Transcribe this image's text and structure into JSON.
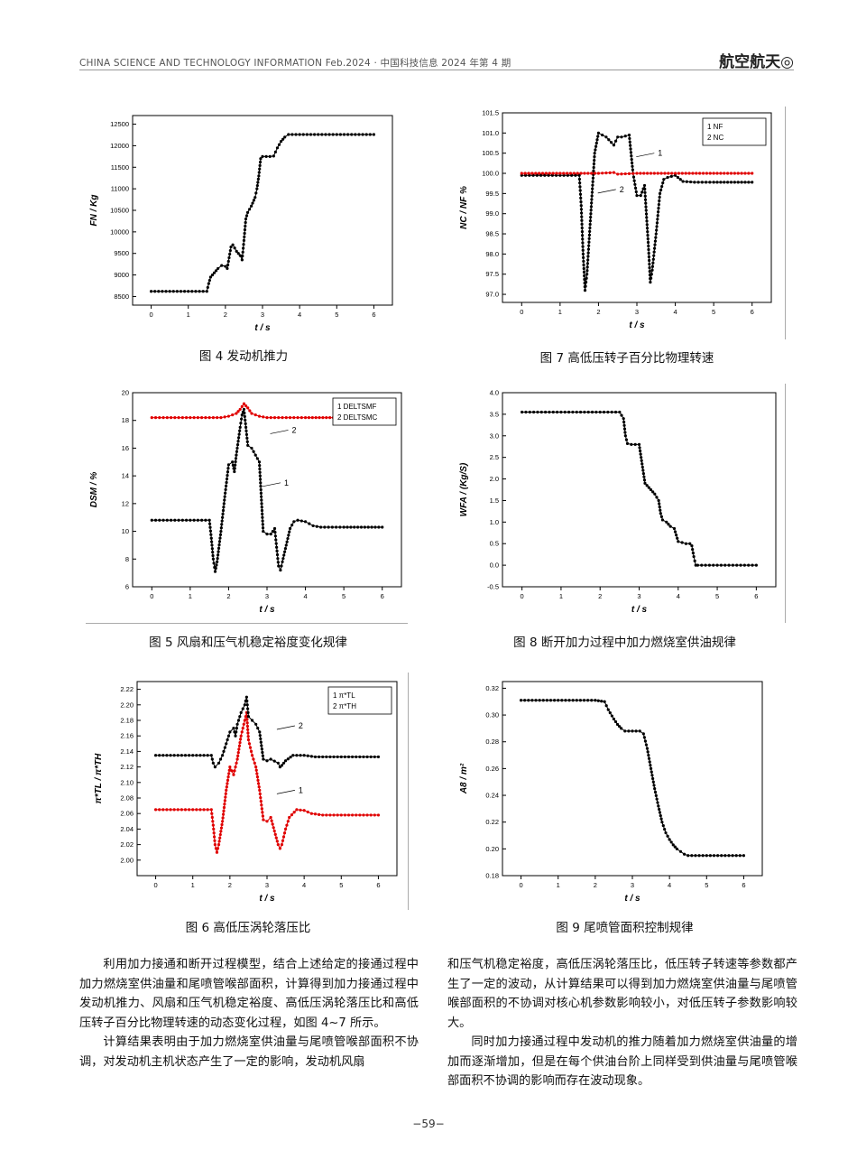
{
  "header": {
    "left": "CHINA SCIENCE AND TECHNOLOGY INFORMATION    Feb.2024 · 中国科技信息 2024 年第 4 期",
    "right": "航空航天◎"
  },
  "figures": [
    {
      "caption": "图 4   发动机推力"
    },
    {
      "caption": "图 5   风扇和压气机稳定裕度变化规律"
    },
    {
      "caption": "图 6   高低压涡轮落压比"
    },
    {
      "caption": "图 7   高低压转子百分比物理转速"
    },
    {
      "caption": "图 8   断开加力过程中加力燃烧室供油规律"
    },
    {
      "caption": "图 9   尾喷管面积控制规律"
    }
  ],
  "body": {
    "left_p1": "利用加力接通和断开过程模型，结合上述给定的接通过程中加力燃烧室供油量和尾喷管喉部面积，计算得到加力接通过程中发动机推力、风扇和压气机稳定裕度、高低压涡轮落压比和高低压转子百分比物理转速的动态变化过程，如图 4~7 所示。",
    "left_p2": "计算结果表明由于加力燃烧室供油量与尾喷管喉部面积不协调，对发动机主机状态产生了一定的影响，发动机风扇",
    "right_p1": "和压气机稳定裕度，高低压涡轮落压比，低压转子转速等参数都产生了一定的波动，从计算结果可以得到加力燃烧室供油量与尾喷管喉部面积的不协调对核心机参数影响较小，对低压转子参数影响较大。",
    "right_p2": "同时加力接通过程中发动机的推力随着加力燃烧室供油量的增加而逐渐增加，但是在每个供油台阶上同样受到供油量与尾喷管喉部面积不协调的影响而存在波动现象。"
  },
  "page_number": "−59−",
  "chart_data": [
    {
      "id": "fig4",
      "type": "scatter",
      "xlabel": "t / s",
      "ylabel": "FN / Kg",
      "xlim": [
        -0.5,
        6.5
      ],
      "ylim": [
        8300,
        12700
      ],
      "xticks": [
        0,
        1,
        2,
        3,
        4,
        5,
        6
      ],
      "yticks": [
        8500,
        9000,
        9500,
        10000,
        10500,
        11000,
        11500,
        12000,
        12500
      ],
      "series": [
        {
          "color": "#000000",
          "x": [
            0,
            0.5,
            1,
            1.5,
            1.55,
            1.6,
            1.7,
            1.8,
            1.9,
            2.0,
            2.05,
            2.1,
            2.15,
            2.2,
            2.3,
            2.4,
            2.45,
            2.5,
            2.55,
            2.6,
            2.7,
            2.8,
            2.85,
            2.9,
            2.95,
            3.0,
            3.2,
            3.3,
            3.4,
            3.5,
            3.6,
            3.7,
            4,
            5,
            6
          ],
          "y": [
            8620,
            8620,
            8620,
            8620,
            8800,
            8950,
            9050,
            9150,
            9220,
            9200,
            9150,
            9400,
            9650,
            9700,
            9550,
            9450,
            9350,
            9800,
            10300,
            10450,
            10600,
            10800,
            11000,
            11300,
            11700,
            11750,
            11750,
            11760,
            11950,
            12100,
            12200,
            12260,
            12260,
            12260,
            12260
          ]
        }
      ]
    },
    {
      "id": "fig5",
      "type": "scatter",
      "xlabel": "t / s",
      "ylabel": "DSM / %",
      "xlim": [
        -0.5,
        6.5
      ],
      "ylim": [
        6,
        20
      ],
      "xticks": [
        0,
        1,
        2,
        3,
        4,
        5,
        6
      ],
      "yticks": [
        6,
        8,
        10,
        12,
        14,
        16,
        18,
        20
      ],
      "legend": [
        "1 DELTSMF",
        "2 DELTSMC"
      ],
      "annotations": [
        {
          "text": "1",
          "x": 3.4,
          "y": 13.5
        },
        {
          "text": "2",
          "x": 3.6,
          "y": 17.3
        }
      ],
      "series": [
        {
          "name": "1 DELTSMF",
          "color": "#000000",
          "x": [
            0,
            0.5,
            1,
            1.5,
            1.55,
            1.6,
            1.65,
            1.7,
            1.8,
            1.9,
            2.0,
            2.1,
            2.15,
            2.2,
            2.3,
            2.35,
            2.4,
            2.5,
            2.6,
            2.7,
            2.8,
            2.85,
            2.9,
            3.0,
            3.1,
            3.2,
            3.3,
            3.35,
            3.4,
            3.5,
            3.6,
            3.7,
            3.8,
            4.0,
            4.2,
            4.4,
            5,
            6
          ],
          "y": [
            10.8,
            10.8,
            10.8,
            10.8,
            9.5,
            8.0,
            7.1,
            7.8,
            10.0,
            12.5,
            14.8,
            15.0,
            14.3,
            15.5,
            17.5,
            18.4,
            18.8,
            16.2,
            16.0,
            15.5,
            15.0,
            12.5,
            10.0,
            9.8,
            9.8,
            10.2,
            7.5,
            7.2,
            7.8,
            9.0,
            10.2,
            10.7,
            10.8,
            10.7,
            10.4,
            10.3,
            10.3,
            10.3
          ]
        },
        {
          "name": "2 DELTSMC",
          "color": "#e00000",
          "x": [
            0,
            0.5,
            1,
            1.5,
            1.8,
            2.0,
            2.2,
            2.3,
            2.4,
            2.5,
            2.6,
            2.8,
            3.0,
            3.4,
            4,
            5,
            6
          ],
          "y": [
            18.2,
            18.2,
            18.2,
            18.2,
            18.2,
            18.3,
            18.5,
            18.8,
            19.2,
            18.9,
            18.5,
            18.3,
            18.2,
            18.2,
            18.2,
            18.2,
            18.2
          ]
        }
      ]
    },
    {
      "id": "fig6",
      "type": "scatter",
      "xlabel": "t / s",
      "ylabel": "π*TL / π*TH",
      "xlim": [
        -0.5,
        6.5
      ],
      "ylim": [
        1.98,
        2.23
      ],
      "xticks": [
        0,
        1,
        2,
        3,
        4,
        5,
        6
      ],
      "yticks": [
        2.0,
        2.02,
        2.04,
        2.06,
        2.08,
        2.1,
        2.12,
        2.14,
        2.16,
        2.18,
        2.2,
        2.22
      ],
      "legend": [
        "1 π*TL",
        "2 π*TH"
      ],
      "annotations": [
        {
          "text": "2",
          "x": 3.8,
          "y": 2.173
        },
        {
          "text": "1",
          "x": 3.8,
          "y": 2.09
        }
      ],
      "series": [
        {
          "name": "1 π*TL",
          "color": "#e00000",
          "x": [
            0,
            0.5,
            1,
            1.5,
            1.55,
            1.6,
            1.65,
            1.7,
            1.8,
            1.9,
            2.0,
            2.1,
            2.15,
            2.2,
            2.3,
            2.4,
            2.45,
            2.5,
            2.6,
            2.7,
            2.8,
            2.9,
            3.0,
            3.1,
            3.3,
            3.35,
            3.4,
            3.5,
            3.6,
            3.8,
            4.0,
            4.2,
            4.5,
            5,
            6
          ],
          "y": [
            2.065,
            2.065,
            2.065,
            2.065,
            2.045,
            2.02,
            2.01,
            2.02,
            2.05,
            2.09,
            2.12,
            2.11,
            2.12,
            2.13,
            2.16,
            2.18,
            2.19,
            2.155,
            2.135,
            2.12,
            2.09,
            2.052,
            2.05,
            2.055,
            2.02,
            2.015,
            2.02,
            2.04,
            2.055,
            2.065,
            2.064,
            2.06,
            2.058,
            2.058,
            2.058
          ]
        },
        {
          "name": "2 π*TH",
          "color": "#000000",
          "x": [
            0,
            0.5,
            1,
            1.5,
            1.55,
            1.6,
            1.7,
            1.8,
            1.9,
            2.0,
            2.1,
            2.15,
            2.2,
            2.3,
            2.4,
            2.45,
            2.5,
            2.6,
            2.7,
            2.8,
            2.9,
            3.0,
            3.1,
            3.3,
            3.35,
            3.4,
            3.5,
            3.7,
            4.0,
            4.3,
            5,
            6
          ],
          "y": [
            2.135,
            2.135,
            2.135,
            2.135,
            2.125,
            2.12,
            2.125,
            2.135,
            2.15,
            2.165,
            2.17,
            2.16,
            2.175,
            2.19,
            2.2,
            2.21,
            2.185,
            2.18,
            2.175,
            2.165,
            2.13,
            2.128,
            2.13,
            2.125,
            2.12,
            2.122,
            2.128,
            2.135,
            2.135,
            2.133,
            2.133,
            2.133
          ]
        }
      ]
    },
    {
      "id": "fig7",
      "type": "scatter",
      "xlabel": "t / s",
      "ylabel": "NC / NF %",
      "xlim": [
        -0.5,
        6.5
      ],
      "ylim": [
        96.8,
        101.5
      ],
      "xticks": [
        0,
        1,
        2,
        3,
        4,
        5,
        6
      ],
      "yticks": [
        97.0,
        97.5,
        98.0,
        98.5,
        99.0,
        99.5,
        100.0,
        100.5,
        101.0,
        101.5
      ],
      "legend": [
        "1 NF",
        "2 NC"
      ],
      "annotations": [
        {
          "text": "1",
          "x": 3.5,
          "y": 100.5
        },
        {
          "text": "2",
          "x": 2.5,
          "y": 99.6
        }
      ],
      "series": [
        {
          "name": "1 NF",
          "color": "#000000",
          "x": [
            0,
            0.5,
            1,
            1.5,
            1.55,
            1.6,
            1.65,
            1.7,
            1.8,
            1.9,
            2.0,
            2.2,
            2.4,
            2.5,
            2.6,
            2.8,
            2.9,
            3.0,
            3.1,
            3.2,
            3.3,
            3.35,
            3.4,
            3.5,
            3.6,
            3.7,
            3.8,
            4.0,
            4.2,
            4.5,
            5,
            6
          ],
          "y": [
            99.95,
            99.95,
            99.95,
            99.95,
            99.2,
            98.0,
            97.1,
            97.5,
            99.0,
            100.5,
            101.0,
            100.9,
            100.7,
            100.9,
            100.9,
            100.95,
            100.0,
            99.45,
            99.45,
            99.7,
            98.2,
            97.3,
            97.6,
            98.5,
            99.5,
            99.85,
            99.9,
            99.95,
            99.8,
            99.78,
            99.78,
            99.78
          ]
        },
        {
          "name": "2 NC",
          "color": "#e00000",
          "x": [
            0,
            1,
            2,
            2.4,
            2.5,
            3,
            4,
            5,
            6
          ],
          "y": [
            100.0,
            100.0,
            100.0,
            100.02,
            99.98,
            100.0,
            100.0,
            100.0,
            100.0
          ]
        }
      ]
    },
    {
      "id": "fig8",
      "type": "scatter",
      "xlabel": "t / s",
      "ylabel": "WFA / (Kg/S)",
      "xlim": [
        -0.5,
        6.5
      ],
      "ylim": [
        -0.5,
        4.0
      ],
      "xticks": [
        0,
        1,
        2,
        3,
        4,
        5,
        6
      ],
      "yticks": [
        -0.5,
        0.0,
        0.5,
        1.0,
        1.5,
        2.0,
        2.5,
        3.0,
        3.5,
        4.0
      ],
      "series": [
        {
          "color": "#000000",
          "x": [
            0,
            0.5,
            1,
            1.5,
            2,
            2.5,
            2.6,
            2.65,
            2.7,
            2.8,
            2.9,
            3.0,
            3.05,
            3.1,
            3.15,
            3.2,
            3.3,
            3.4,
            3.5,
            3.55,
            3.6,
            3.7,
            3.8,
            3.9,
            4.0,
            4.2,
            4.3,
            4.35,
            4.4,
            4.45,
            4.5,
            5,
            5.5,
            6
          ],
          "y": [
            3.55,
            3.55,
            3.55,
            3.55,
            3.55,
            3.55,
            3.4,
            3.0,
            2.82,
            2.8,
            2.8,
            2.8,
            2.5,
            2.2,
            1.9,
            1.85,
            1.75,
            1.65,
            1.5,
            1.2,
            1.05,
            1.0,
            0.9,
            0.85,
            0.55,
            0.5,
            0.5,
            0.45,
            0.2,
            0.0,
            0.0,
            0.0,
            0.0,
            0.0
          ]
        }
      ]
    },
    {
      "id": "fig9",
      "type": "scatter",
      "xlabel": "t / s",
      "ylabel": "A8 / m²",
      "xlim": [
        -0.5,
        6.5
      ],
      "ylim": [
        0.18,
        0.325
      ],
      "xticks": [
        0,
        1,
        2,
        3,
        4,
        5,
        6
      ],
      "yticks": [
        0.18,
        0.2,
        0.22,
        0.24,
        0.26,
        0.28,
        0.3,
        0.32
      ],
      "series": [
        {
          "color": "#000000",
          "x": [
            0,
            0.5,
            1,
            1.5,
            2,
            2.25,
            2.35,
            2.5,
            2.6,
            2.7,
            2.8,
            3.0,
            3.2,
            3.3,
            3.4,
            3.5,
            3.6,
            3.7,
            3.8,
            3.9,
            4.0,
            4.1,
            4.2,
            4.3,
            4.4,
            4.5,
            5,
            5.5,
            6
          ],
          "y": [
            0.311,
            0.311,
            0.311,
            0.311,
            0.311,
            0.31,
            0.304,
            0.297,
            0.293,
            0.29,
            0.288,
            0.288,
            0.288,
            0.286,
            0.275,
            0.26,
            0.245,
            0.232,
            0.22,
            0.212,
            0.207,
            0.203,
            0.2,
            0.198,
            0.196,
            0.195,
            0.195,
            0.195,
            0.195
          ]
        }
      ]
    }
  ]
}
